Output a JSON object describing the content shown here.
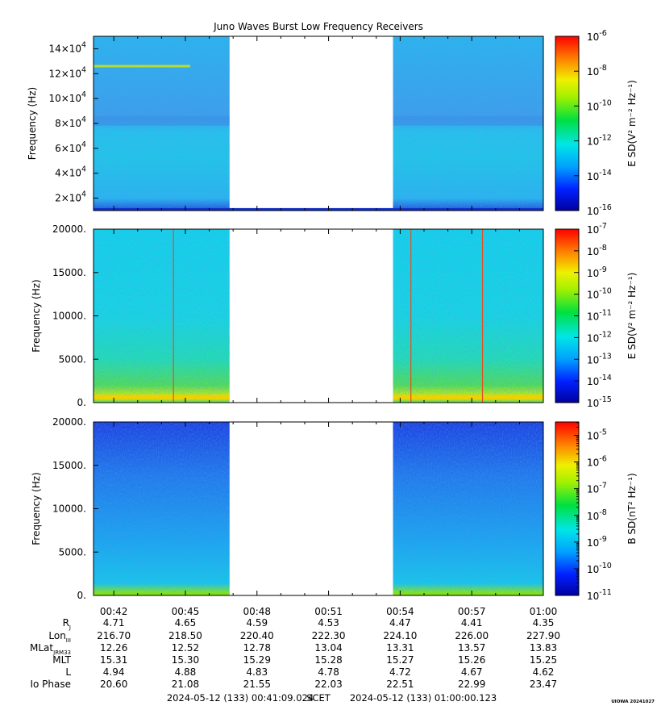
{
  "title": "Juno Waves Burst Low Frequency Receivers",
  "footer": {
    "start": "2024-05-12 (133) 00:41:09.024",
    "scet": "SCET",
    "end": "2024-05-12 (133) 01:00:00.123",
    "credit": "UIOWA 20241027"
  },
  "chart_data": [
    {
      "type": "heatmap",
      "ylabel": "Frequency (Hz)",
      "yticks": [
        "2×10^4",
        "4×10^4",
        "6×10^4",
        "8×10^4",
        "10×10^4",
        "12×10^4",
        "14×10^4"
      ],
      "ytick_values": [
        20000,
        40000,
        60000,
        80000,
        100000,
        120000,
        140000
      ],
      "ylim": [
        10000,
        150000
      ],
      "colorbar": {
        "label": "E SD(V² m⁻² Hz⁻¹)",
        "ticks": [
          "10^-6",
          "10^-8",
          "10^-10",
          "10^-12",
          "10^-14",
          "10^-16"
        ],
        "range_log": [
          -16,
          -6
        ],
        "minor": false
      },
      "features": "broadband emission near 1.25e5 Hz early; spectral band structure"
    },
    {
      "type": "heatmap",
      "ylabel": "Frequency (Hz)",
      "yticks": [
        "0.",
        "5000.",
        "10000.",
        "15000.",
        "20000."
      ],
      "ytick_values": [
        0,
        5000,
        10000,
        15000,
        20000
      ],
      "ylim": [
        0,
        20000
      ],
      "colorbar": {
        "label": "E SD(V² m⁻² Hz⁻¹)",
        "ticks": [
          "10^-7",
          "10^-8",
          "10^-9",
          "10^-10",
          "10^-11",
          "10^-12",
          "10^-13",
          "10^-14",
          "10^-15"
        ],
        "range_log": [
          -15,
          -7
        ],
        "minor": false
      },
      "features": "intense low-frequency emission below 1 kHz; vertical spikes near 00:44:30, 00:54:30, 00:57:30"
    },
    {
      "type": "heatmap",
      "ylabel": "Frequency (Hz)",
      "yticks": [
        "0.",
        "5000.",
        "10000.",
        "15000.",
        "20000."
      ],
      "ytick_values": [
        0,
        5000,
        10000,
        15000,
        20000
      ],
      "ylim": [
        0,
        20000
      ],
      "colorbar": {
        "label": "B SD(nT² Hz⁻¹)",
        "ticks": [
          "10^-5",
          "10^-6",
          "10^-7",
          "10^-8",
          "10^-9",
          "10^-10",
          "10^-11"
        ],
        "range_log": [
          -11,
          -4.5
        ],
        "minor": true
      },
      "features": "low magnetic power, slightly elevated at lowest frequencies"
    }
  ],
  "x_axis": {
    "ticks": [
      "00:42",
      "00:45",
      "00:48",
      "00:51",
      "00:54",
      "00:57",
      "01:00"
    ],
    "tick_minutes": [
      42,
      45,
      48,
      51,
      54,
      57,
      60
    ],
    "range_minutes": [
      41.15,
      60.0
    ],
    "data_gap_minutes": [
      46.85,
      53.7
    ]
  },
  "ephemeris": {
    "labels": [
      {
        "main": "R",
        "sub": "J"
      },
      {
        "main": "Lon",
        "sub": "III"
      },
      {
        "main": "MLat",
        "sub": "JRM33"
      },
      {
        "main": "MLT",
        "sub": ""
      },
      {
        "main": "L",
        "sub": ""
      },
      {
        "main": "Io Phase",
        "sub": ""
      }
    ],
    "rows": [
      [
        "4.71",
        "4.65",
        "4.59",
        "4.53",
        "4.47",
        "4.41",
        "4.35"
      ],
      [
        "216.70",
        "218.50",
        "220.40",
        "222.30",
        "224.10",
        "226.00",
        "227.90"
      ],
      [
        "12.26",
        "12.52",
        "12.78",
        "13.04",
        "13.31",
        "13.57",
        "13.83"
      ],
      [
        "15.31",
        "15.30",
        "15.29",
        "15.28",
        "15.27",
        "15.26",
        "15.25"
      ],
      [
        "4.94",
        "4.88",
        "4.83",
        "4.78",
        "4.72",
        "4.67",
        "4.62"
      ],
      [
        "20.60",
        "21.08",
        "21.55",
        "22.03",
        "22.51",
        "22.99",
        "23.47"
      ]
    ]
  }
}
